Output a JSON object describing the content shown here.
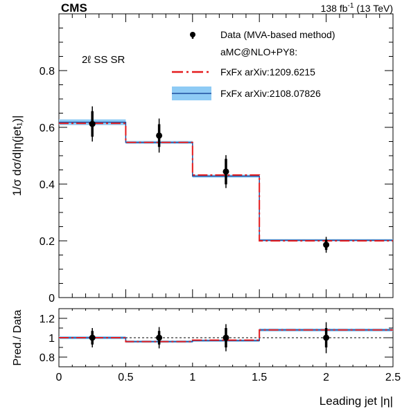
{
  "header": {
    "experiment": "CMS",
    "lumi_value": "138 fb",
    "lumi_exp": "-1",
    "lumi_energy": " (13 TeV)"
  },
  "region_label": "2ℓ SS SR",
  "colors": {
    "data": "#000000",
    "fxfx_2012": "#e41a1c",
    "fxfx_2021_line": "#1f4e9e",
    "fxfx_2021_band": "#8ecbf5"
  },
  "chart_data": [
    {
      "type": "line",
      "panel": "main",
      "ylabel": "1/σ dσ/d|η(jet₁)|",
      "xlabel": "",
      "xlim": [
        0,
        2.5
      ],
      "ylim": [
        0,
        1.0
      ],
      "yticks": [
        0,
        0.2,
        0.4,
        0.6,
        0.8
      ],
      "ytick_labels": [
        "0",
        "0.2",
        "0.4",
        "0.6",
        "0.8"
      ],
      "bin_edges": [
        0,
        0.5,
        1.0,
        1.5,
        2.5
      ],
      "legend": {
        "position": "top-right",
        "entries": [
          "Data (MVA-based method)",
          "aMC@NLO+PY8:",
          "FxFx arXiv:1209.6215",
          "FxFx arXiv:2108.07826"
        ]
      },
      "series": [
        {
          "name": "Data (MVA-based method)",
          "style": "points",
          "x": [
            0.25,
            0.75,
            1.25,
            2.0
          ],
          "values": [
            0.612,
            0.571,
            0.444,
            0.186
          ],
          "err_stat": [
            0.045,
            0.04,
            0.045,
            0.018
          ],
          "err_tot": [
            0.062,
            0.06,
            0.058,
            0.028
          ]
        },
        {
          "name": "FxFx arXiv:1209.6215",
          "style": "dashed-step",
          "values": [
            0.614,
            0.547,
            0.432,
            0.2
          ]
        },
        {
          "name": "FxFx arXiv:2108.07826",
          "style": "step-with-band",
          "values": [
            0.618,
            0.547,
            0.428,
            0.202
          ],
          "band": [
            0.01,
            0.005,
            0.005,
            0.004
          ]
        }
      ]
    },
    {
      "type": "line",
      "panel": "ratio",
      "ylabel": "Pred./ Data",
      "xlabel": "Leading jet |η|",
      "xlim": [
        0,
        2.5
      ],
      "ylim": [
        0.7,
        1.3
      ],
      "yticks": [
        0.8,
        1,
        1.2
      ],
      "ytick_labels": [
        "0.8",
        "1",
        "1.2"
      ],
      "xticks": [
        0,
        0.5,
        1,
        1.5,
        2,
        2.5
      ],
      "xtick_labels": [
        "0",
        "0.5",
        "1",
        "1.5",
        "2",
        "2.5"
      ],
      "reference_line": 1.0,
      "bin_edges": [
        0,
        0.5,
        1.0,
        1.5,
        2.5
      ],
      "series": [
        {
          "name": "Data (MVA-based method)",
          "style": "points",
          "x": [
            0.25,
            0.75,
            1.25,
            2.0
          ],
          "values": [
            1.0,
            1.0,
            1.0,
            1.0
          ],
          "err_stat": [
            0.07,
            0.07,
            0.1,
            0.1
          ],
          "err_tot": [
            0.1,
            0.11,
            0.14,
            0.16
          ]
        },
        {
          "name": "FxFx arXiv:1209.6215",
          "style": "dashed-step",
          "values": [
            1.0,
            0.96,
            0.975,
            1.08
          ]
        },
        {
          "name": "FxFx arXiv:2108.07826",
          "style": "step-with-band",
          "values": [
            1.0,
            0.96,
            0.97,
            1.08
          ],
          "band": [
            0.015,
            0.012,
            0.012,
            0.015
          ]
        }
      ]
    }
  ]
}
